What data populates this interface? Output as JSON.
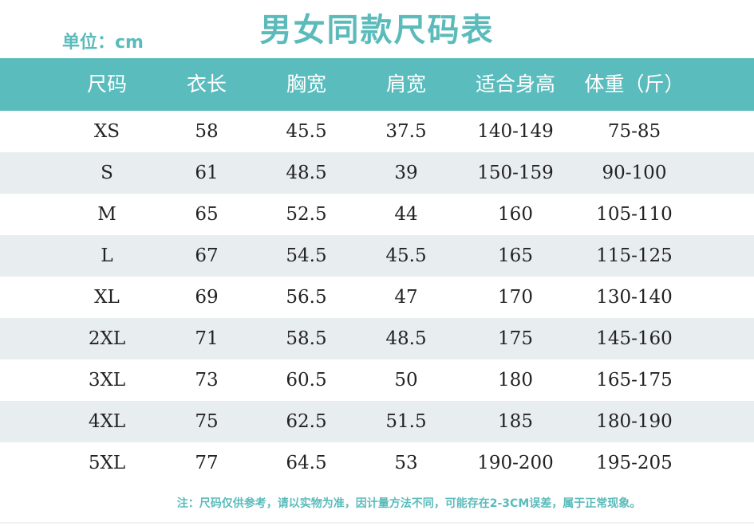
{
  "title": "男女同款尺码表",
  "unit_label": "单位：cm",
  "table": {
    "headers": [
      "尺码",
      "衣长",
      "胸宽",
      "肩宽",
      "适合身高",
      "体重（斤）"
    ],
    "rows": [
      [
        "XS",
        "58",
        "45.5",
        "37.5",
        "140-149",
        "75-85"
      ],
      [
        "S",
        "61",
        "48.5",
        "39",
        "150-159",
        "90-100"
      ],
      [
        "M",
        "65",
        "52.5",
        "44",
        "160",
        "105-110"
      ],
      [
        "L",
        "67",
        "54.5",
        "45.5",
        "165",
        "115-125"
      ],
      [
        "XL",
        "69",
        "56.5",
        "47",
        "170",
        "130-140"
      ],
      [
        "2XL",
        "71",
        "58.5",
        "48.5",
        "175",
        "145-160"
      ],
      [
        "3XL",
        "73",
        "60.5",
        "50",
        "180",
        "165-175"
      ],
      [
        "4XL",
        "75",
        "62.5",
        "51.5",
        "185",
        "180-190"
      ],
      [
        "5XL",
        "77",
        "64.5",
        "53",
        "190-200",
        "195-205"
      ]
    ]
  },
  "note": "注：尺码仅供参考，请以实物为准，因计量方法不同，可能存在2-3CM误差，属于正常现象。",
  "colors": {
    "accent": "#5bbcbd",
    "stripe": "#e8edf0"
  }
}
